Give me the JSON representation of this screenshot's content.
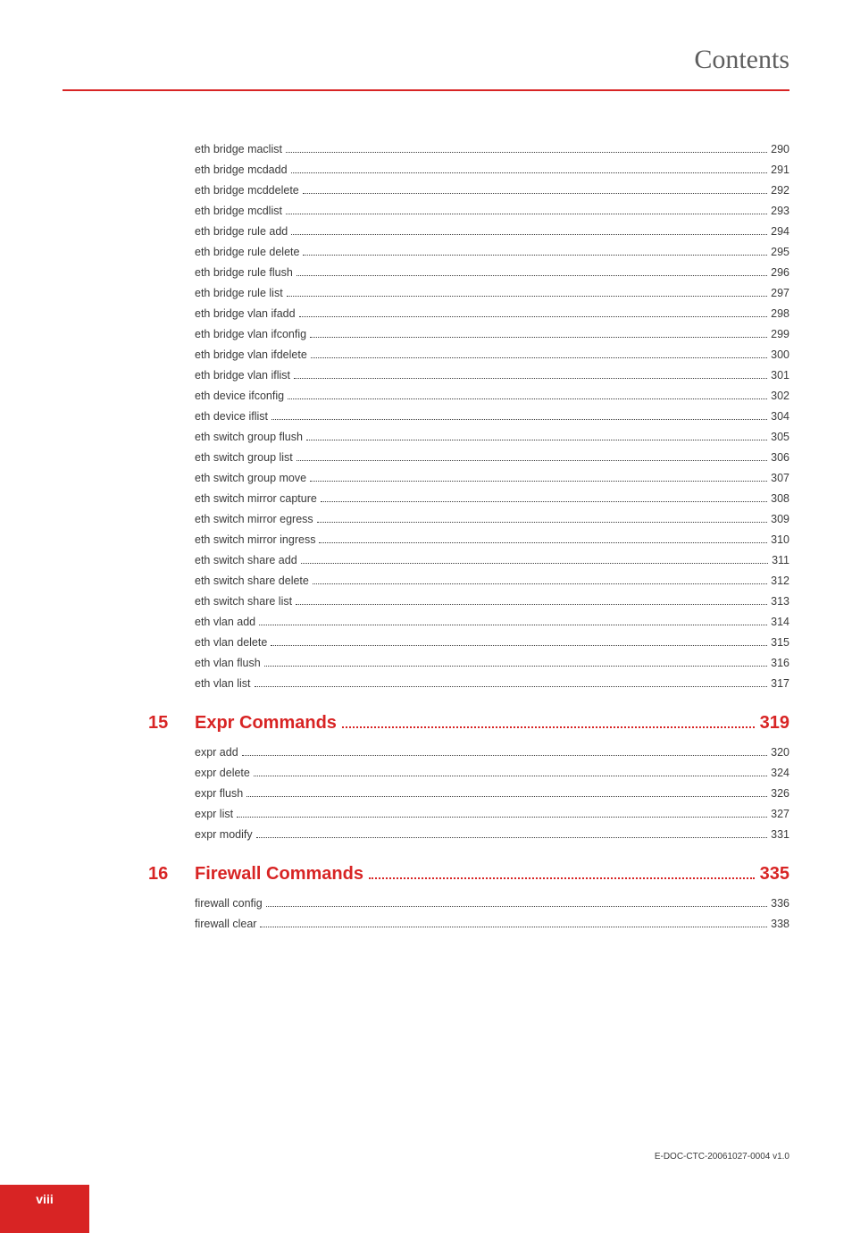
{
  "header": {
    "title": "Contents"
  },
  "colors": {
    "accent": "#d82424",
    "header_text": "#5e5e5e",
    "body_text": "#3a3a3a",
    "background": "#ffffff"
  },
  "toc": {
    "continuation_entries": [
      {
        "label": "eth bridge maclist",
        "page": "290"
      },
      {
        "label": "eth bridge mcdadd",
        "page": "291"
      },
      {
        "label": "eth bridge mcddelete",
        "page": "292"
      },
      {
        "label": "eth bridge mcdlist",
        "page": "293"
      },
      {
        "label": "eth bridge rule add",
        "page": "294"
      },
      {
        "label": "eth bridge rule delete",
        "page": "295"
      },
      {
        "label": "eth bridge rule flush",
        "page": "296"
      },
      {
        "label": "eth bridge rule list",
        "page": "297"
      },
      {
        "label": "eth bridge vlan ifadd",
        "page": "298"
      },
      {
        "label": "eth bridge vlan ifconfig",
        "page": "299"
      },
      {
        "label": "eth bridge vlan ifdelete",
        "page": "300"
      },
      {
        "label": "eth bridge vlan iflist",
        "page": "301"
      },
      {
        "label": "eth device ifconfig",
        "page": "302"
      },
      {
        "label": "eth device iflist",
        "page": "304"
      },
      {
        "label": "eth switch group flush",
        "page": "305"
      },
      {
        "label": "eth switch group list",
        "page": "306"
      },
      {
        "label": "eth switch group move",
        "page": "307"
      },
      {
        "label": "eth switch mirror capture",
        "page": "308"
      },
      {
        "label": "eth switch mirror egress",
        "page": "309"
      },
      {
        "label": "eth switch mirror ingress",
        "page": "310"
      },
      {
        "label": "eth switch share add",
        "page": "311"
      },
      {
        "label": "eth switch share delete",
        "page": "312"
      },
      {
        "label": "eth switch share list",
        "page": "313"
      },
      {
        "label": "eth vlan add",
        "page": "314"
      },
      {
        "label": "eth vlan delete",
        "page": "315"
      },
      {
        "label": "eth vlan flush",
        "page": "316"
      },
      {
        "label": "eth vlan list",
        "page": "317"
      }
    ],
    "sections": [
      {
        "num": "15",
        "title": "Expr Commands",
        "page": "319",
        "entries": [
          {
            "label": "expr add",
            "page": "320"
          },
          {
            "label": "expr delete",
            "page": "324"
          },
          {
            "label": "expr flush",
            "page": "326"
          },
          {
            "label": "expr list",
            "page": "327"
          },
          {
            "label": "expr modify",
            "page": "331"
          }
        ]
      },
      {
        "num": "16",
        "title": "Firewall Commands",
        "page": "335",
        "entries": [
          {
            "label": "firewall config",
            "page": "336"
          },
          {
            "label": "firewall clear",
            "page": "338"
          }
        ]
      }
    ]
  },
  "footer": {
    "page_number": "viii",
    "doc_id": "E-DOC-CTC-20061027-0004 v1.0"
  }
}
